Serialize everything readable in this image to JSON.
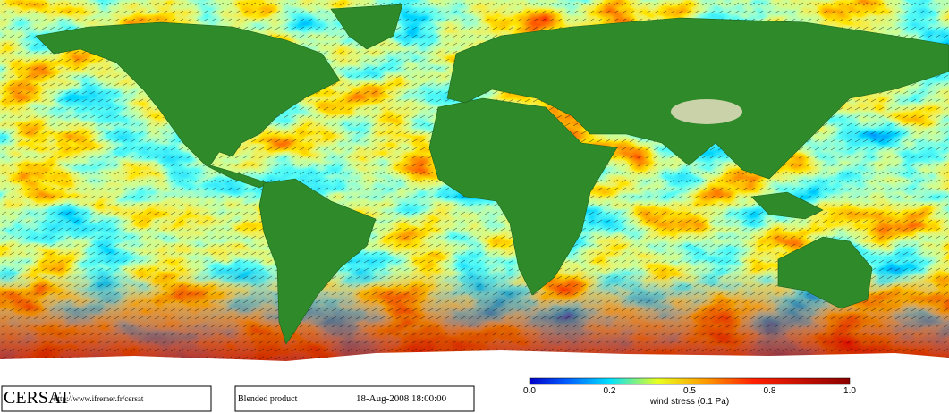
{
  "footer": {
    "logo": "CERSAT",
    "url": "http://www.ifremer.fr/cersat",
    "product": "Blended product",
    "date": "18-Aug-2008 18:00:00"
  },
  "colorbar": {
    "ticks": [
      "0.0",
      "0.2",
      "0.5",
      "0.8",
      "1.0"
    ],
    "label": "wind stress (0.1 Pa)"
  }
}
